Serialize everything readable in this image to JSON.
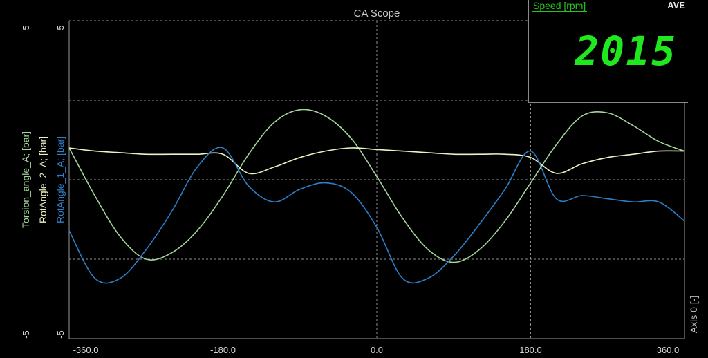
{
  "chart_data": {
    "type": "line",
    "title": "CA Scope",
    "x": {
      "min": -360,
      "max": 360,
      "ticks": [
        "-360.0",
        "-180.0",
        "0.0",
        "180.0",
        "360.0"
      ]
    },
    "y": {
      "min": -5,
      "max": 5
    },
    "y_axes": [
      {
        "label": "Torsion_angle_A; [bar]",
        "color": "#a3d69a",
        "top": "5",
        "bottom": "-5"
      },
      {
        "label": "RotAngle_2_A; [bar]",
        "color": "#e9f3c4",
        "top": "",
        "bottom": ""
      },
      {
        "label": "RotAngle_1_A; [bar]",
        "color": "#2e7fc8",
        "top": "5",
        "bottom": "-5"
      }
    ],
    "right_axis_label": "Axis 0 [-]",
    "grid": true,
    "series": [
      {
        "name": "Torsion_angle_A; [bar]",
        "color": "#a3d69a",
        "x": [
          -360,
          -330,
          -300,
          -270,
          -240,
          -210,
          -180,
          -150,
          -120,
          -90,
          -60,
          -30,
          0,
          30,
          60,
          90,
          120,
          150,
          180,
          210,
          240,
          270,
          300,
          330,
          360
        ],
        "y": [
          1.0,
          -0.5,
          -1.8,
          -2.5,
          -2.3,
          -1.6,
          -0.5,
          0.8,
          1.8,
          2.2,
          2.0,
          1.3,
          0.1,
          -1.2,
          -2.2,
          -2.6,
          -2.2,
          -1.3,
          -0.1,
          1.1,
          2.0,
          2.1,
          1.7,
          1.2,
          0.9
        ]
      },
      {
        "name": "RotAngle_2_A; [bar]",
        "color": "#e9f3c4",
        "x": [
          -360,
          -330,
          -300,
          -270,
          -240,
          -210,
          -180,
          -150,
          -120,
          -90,
          -60,
          -30,
          0,
          30,
          60,
          90,
          120,
          150,
          180,
          210,
          240,
          270,
          300,
          330,
          360
        ],
        "y": [
          1.0,
          0.9,
          0.85,
          0.8,
          0.8,
          0.8,
          0.8,
          0.2,
          0.4,
          0.7,
          0.9,
          1.0,
          0.95,
          0.9,
          0.85,
          0.8,
          0.8,
          0.8,
          0.7,
          0.2,
          0.5,
          0.7,
          0.8,
          0.9,
          0.9
        ]
      },
      {
        "name": "RotAngle_1_A; [bar]",
        "color": "#2e7fc8",
        "x": [
          -360,
          -330,
          -300,
          -270,
          -240,
          -210,
          -180,
          -150,
          -120,
          -90,
          -60,
          -30,
          0,
          30,
          60,
          90,
          120,
          150,
          180,
          210,
          240,
          270,
          300,
          330,
          360
        ],
        "y": [
          -1.6,
          -3.1,
          -3.1,
          -2.2,
          -1.0,
          0.4,
          1.0,
          -0.2,
          -0.7,
          -0.3,
          -0.1,
          -0.4,
          -1.5,
          -3.1,
          -3.1,
          -2.4,
          -1.4,
          -0.3,
          0.9,
          -0.6,
          -0.5,
          -0.6,
          -0.7,
          -0.7,
          -1.3
        ]
      }
    ]
  },
  "speed": {
    "label": "Speed [rpm]",
    "mode": "AVE",
    "value": "2015"
  }
}
